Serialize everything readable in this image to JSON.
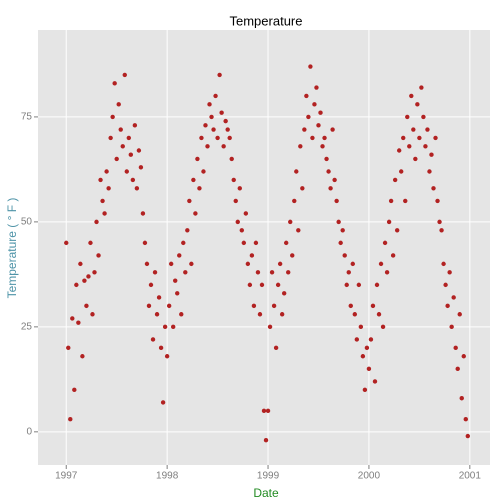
{
  "chart_data": {
    "type": "scatter",
    "title": "Temperature",
    "x_label": "Date",
    "y_label": "Temperature ( ° F )",
    "color": "#b22222",
    "grid": true,
    "xlim": [
      1996.72,
      2001.2
    ],
    "ylim": [
      -7.9,
      95.7
    ],
    "xticks": [
      1997,
      1998,
      1999,
      2000,
      2001
    ],
    "yticks": [
      0,
      25,
      50,
      75
    ],
    "x": [
      1997.0,
      1997.02,
      1997.04,
      1997.06,
      1997.08,
      1997.1,
      1997.12,
      1997.14,
      1997.16,
      1997.18,
      1997.2,
      1997.22,
      1997.24,
      1997.26,
      1997.28,
      1997.3,
      1997.32,
      1997.34,
      1997.36,
      1997.38,
      1997.4,
      1997.42,
      1997.44,
      1997.46,
      1997.48,
      1997.5,
      1997.52,
      1997.54,
      1997.56,
      1997.58,
      1997.6,
      1997.62,
      1997.64,
      1997.66,
      1997.68,
      1997.7,
      1997.72,
      1997.74,
      1997.76,
      1997.78,
      1997.8,
      1997.82,
      1997.84,
      1997.86,
      1997.88,
      1997.9,
      1997.92,
      1997.94,
      1997.96,
      1997.98,
      1998.0,
      1998.02,
      1998.04,
      1998.06,
      1998.08,
      1998.1,
      1998.12,
      1998.14,
      1998.16,
      1998.18,
      1998.2,
      1998.22,
      1998.24,
      1998.26,
      1998.28,
      1998.3,
      1998.32,
      1998.34,
      1998.36,
      1998.38,
      1998.4,
      1998.42,
      1998.44,
      1998.46,
      1998.48,
      1998.5,
      1998.52,
      1998.54,
      1998.56,
      1998.58,
      1998.6,
      1998.62,
      1998.64,
      1998.66,
      1998.68,
      1998.7,
      1998.72,
      1998.74,
      1998.76,
      1998.78,
      1998.8,
      1998.82,
      1998.84,
      1998.86,
      1998.88,
      1998.9,
      1998.92,
      1998.94,
      1998.96,
      1998.98,
      1999.0,
      1999.02,
      1999.04,
      1999.06,
      1999.08,
      1999.1,
      1999.12,
      1999.14,
      1999.16,
      1999.18,
      1999.2,
      1999.22,
      1999.24,
      1999.26,
      1999.28,
      1999.3,
      1999.32,
      1999.34,
      1999.36,
      1999.38,
      1999.4,
      1999.42,
      1999.44,
      1999.46,
      1999.48,
      1999.5,
      1999.52,
      1999.54,
      1999.56,
      1999.58,
      1999.6,
      1999.62,
      1999.64,
      1999.66,
      1999.68,
      1999.7,
      1999.72,
      1999.74,
      1999.76,
      1999.78,
      1999.8,
      1999.82,
      1999.84,
      1999.86,
      1999.88,
      1999.9,
      1999.92,
      1999.94,
      1999.96,
      1999.98,
      2000.0,
      2000.02,
      2000.04,
      2000.06,
      2000.08,
      2000.1,
      2000.12,
      2000.14,
      2000.16,
      2000.18,
      2000.2,
      2000.22,
      2000.24,
      2000.26,
      2000.28,
      2000.3,
      2000.32,
      2000.34,
      2000.36,
      2000.38,
      2000.4,
      2000.42,
      2000.44,
      2000.46,
      2000.48,
      2000.5,
      2000.52,
      2000.54,
      2000.56,
      2000.58,
      2000.6,
      2000.62,
      2000.64,
      2000.66,
      2000.68,
      2000.7,
      2000.72,
      2000.74,
      2000.76,
      2000.78,
      2000.8,
      2000.82,
      2000.84,
      2000.86,
      2000.88,
      2000.9,
      2000.92,
      2000.94,
      2000.96,
      2000.98
    ],
    "values": [
      45,
      20,
      3,
      27,
      10,
      35,
      26,
      40,
      18,
      36,
      30,
      37,
      45,
      28,
      38,
      50,
      42,
      60,
      55,
      52,
      62,
      58,
      70,
      75,
      83,
      65,
      78,
      72,
      68,
      85,
      62,
      70,
      66,
      60,
      73,
      58,
      67,
      63,
      52,
      45,
      40,
      30,
      35,
      22,
      38,
      28,
      32,
      20,
      7,
      25,
      18,
      30,
      40,
      25,
      36,
      33,
      42,
      28,
      45,
      38,
      48,
      55,
      40,
      60,
      52,
      65,
      58,
      70,
      62,
      73,
      68,
      78,
      75,
      72,
      80,
      70,
      85,
      76,
      68,
      74,
      72,
      70,
      65,
      60,
      55,
      50,
      58,
      48,
      45,
      52,
      40,
      35,
      42,
      30,
      45,
      38,
      28,
      35,
      5,
      -2,
      5,
      25,
      38,
      30,
      20,
      35,
      40,
      28,
      33,
      45,
      38,
      50,
      42,
      55,
      62,
      48,
      68,
      58,
      72,
      80,
      75,
      87,
      70,
      78,
      82,
      73,
      76,
      68,
      70,
      65,
      62,
      58,
      72,
      60,
      55,
      50,
      45,
      48,
      42,
      35,
      38,
      30,
      40,
      28,
      22,
      35,
      25,
      18,
      10,
      20,
      15,
      22,
      30,
      12,
      35,
      28,
      40,
      25,
      45,
      38,
      50,
      55,
      42,
      60,
      48,
      67,
      62,
      70,
      55,
      75,
      68,
      80,
      72,
      65,
      78,
      70,
      82,
      75,
      68,
      72,
      62,
      66,
      58,
      70,
      55,
      50,
      48,
      40,
      35,
      30,
      38,
      25,
      32,
      20,
      15,
      28,
      8,
      18,
      3,
      -1
    ]
  }
}
